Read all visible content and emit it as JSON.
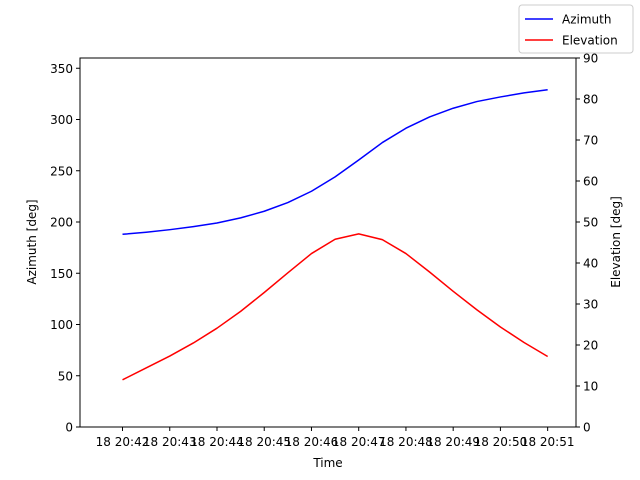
{
  "chart_data": {
    "type": "line",
    "title": "",
    "xlabel": "Time",
    "ylabel_left": "Azimuth [deg]",
    "ylabel_right": "Elevation [deg]",
    "ylim_left": [
      0,
      360
    ],
    "ylim_right": [
      0,
      90
    ],
    "yticks_left": [
      0,
      50,
      100,
      150,
      200,
      250,
      300,
      350
    ],
    "yticks_right": [
      0,
      10,
      20,
      30,
      40,
      50,
      60,
      70,
      80,
      90
    ],
    "x_minutes": [
      42,
      42.5,
      43,
      43.5,
      44,
      44.5,
      45,
      45.5,
      46,
      46.5,
      47,
      47.5,
      48,
      48.5,
      49,
      49.5,
      50,
      50.5,
      51
    ],
    "xtick_labels": [
      "18 20:42",
      "18 20:43",
      "18 20:44",
      "18 20:45",
      "18 20:46",
      "18 20:47",
      "18 20:48",
      "18 20:49",
      "18 20:50",
      "18 20:51"
    ],
    "xtick_minutes": [
      42,
      43,
      44,
      45,
      46,
      47,
      48,
      49,
      50,
      51
    ],
    "xlim_minutes": [
      41.1,
      51.6
    ],
    "grid": false,
    "legend_placement": "top-right (outside axes)",
    "series": [
      {
        "name": "Azimuth",
        "axis": "left",
        "color": "#0000ff",
        "values": [
          188,
          190,
          192.5,
          195.5,
          199,
          204,
          210.5,
          219,
          230,
          244,
          260.5,
          277.5,
          291.5,
          302.5,
          311,
          317.5,
          322,
          326,
          329
        ]
      },
      {
        "name": "Elevation",
        "axis": "right",
        "color": "#ff0000",
        "values": [
          11.5,
          14.4,
          17.3,
          20.5,
          24.1,
          28.2,
          32.8,
          37.6,
          42.3,
          45.8,
          47.1,
          45.7,
          42.3,
          37.8,
          33.1,
          28.6,
          24.4,
          20.6,
          17.2
        ]
      }
    ]
  }
}
